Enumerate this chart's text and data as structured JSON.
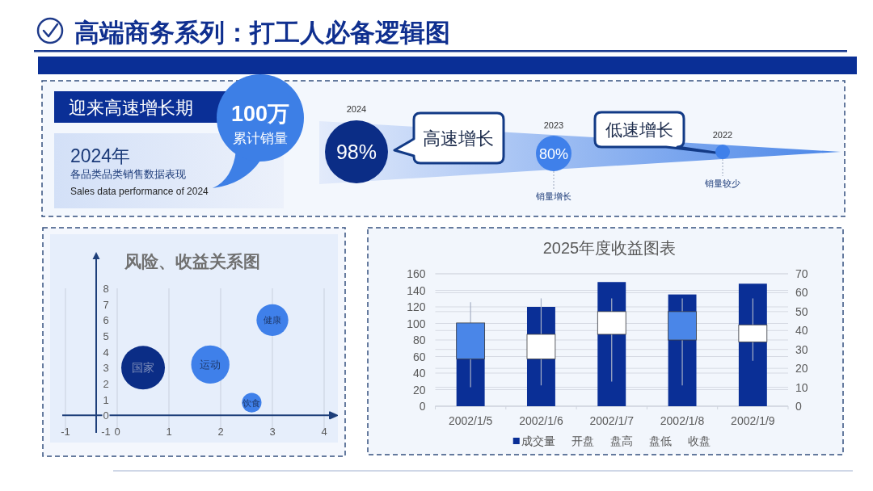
{
  "chart_data": [
    {
      "type": "other",
      "title": "高端商务系列：打工人必备逻辑图",
      "subtitle": "迎来高速增长期",
      "annotations": [
        "100万",
        "累计销量",
        "2024年",
        "各品类品类销售数据表现",
        "Sales data performance of 2024",
        "2024",
        "98%",
        "高速增长",
        "2023",
        "80%",
        "销量增长",
        "低速增长",
        "2022",
        "销量较少"
      ]
    },
    {
      "type": "bubble",
      "title": "风险、收益关系图",
      "series": [
        {
          "name": "国家",
          "color": "#0b2d86",
          "x": [
            0.5
          ],
          "values": [
            3
          ],
          "sizes": [
            1
          ]
        },
        {
          "name": "运动",
          "color": "#3f80ea",
          "x": [
            1.8
          ],
          "values": [
            3.2
          ],
          "sizes": [
            0.77
          ]
        },
        {
          "name": "健康",
          "color": "#3f80ea",
          "x": [
            3
          ],
          "values": [
            6
          ],
          "sizes": [
            0.53
          ]
        },
        {
          "name": "饮食",
          "color": "#3f80ea",
          "x": [
            2.6
          ],
          "values": [
            0.8
          ],
          "sizes": [
            0.2
          ]
        }
      ],
      "xlim": [
        -1,
        4
      ],
      "ylim": [
        -1,
        8
      ],
      "xticks": [
        -1,
        0,
        1,
        2,
        3,
        4
      ],
      "yticks": [
        -1,
        0,
        1,
        2,
        3,
        4,
        5,
        6,
        7,
        8
      ],
      "grid": "x"
    },
    {
      "type": "candlestick",
      "title": "2025年度收益图表",
      "categories": [
        "2002/1/5",
        "2002/1/6",
        "2002/1/7",
        "2002/1/8",
        "2002/1/9"
      ],
      "series": [
        {
          "name": "成交量",
          "type": "bar",
          "color": "#0a2f96",
          "values": [
            100,
            120,
            150,
            135,
            148
          ]
        },
        {
          "type": "candlestick",
          "axis": "y2",
          "ohlc": [
            [
              44,
              55,
              10,
              25
            ],
            [
              25,
              57,
              11,
              38
            ],
            [
              38,
              57,
              13,
              50
            ],
            [
              50,
              57,
              11,
              35
            ],
            [
              34,
              57,
              24,
              43
            ]
          ],
          "colors": [
            "#4a86e8",
            "#ffffff",
            "#ffffff",
            "#4a86e8",
            "#ffffff"
          ]
        }
      ],
      "ylim": [
        0,
        160
      ],
      "yticks": [
        0,
        20,
        40,
        60,
        80,
        100,
        120,
        140,
        160
      ],
      "y2lim": [
        0,
        70
      ],
      "y2ticks": [
        0,
        10,
        20,
        30,
        40,
        50,
        60,
        70
      ],
      "grid": "y",
      "legend": "bottom",
      "annotations": [
        "开盘",
        "盘高",
        "盘低",
        "收盘"
      ]
    }
  ]
}
